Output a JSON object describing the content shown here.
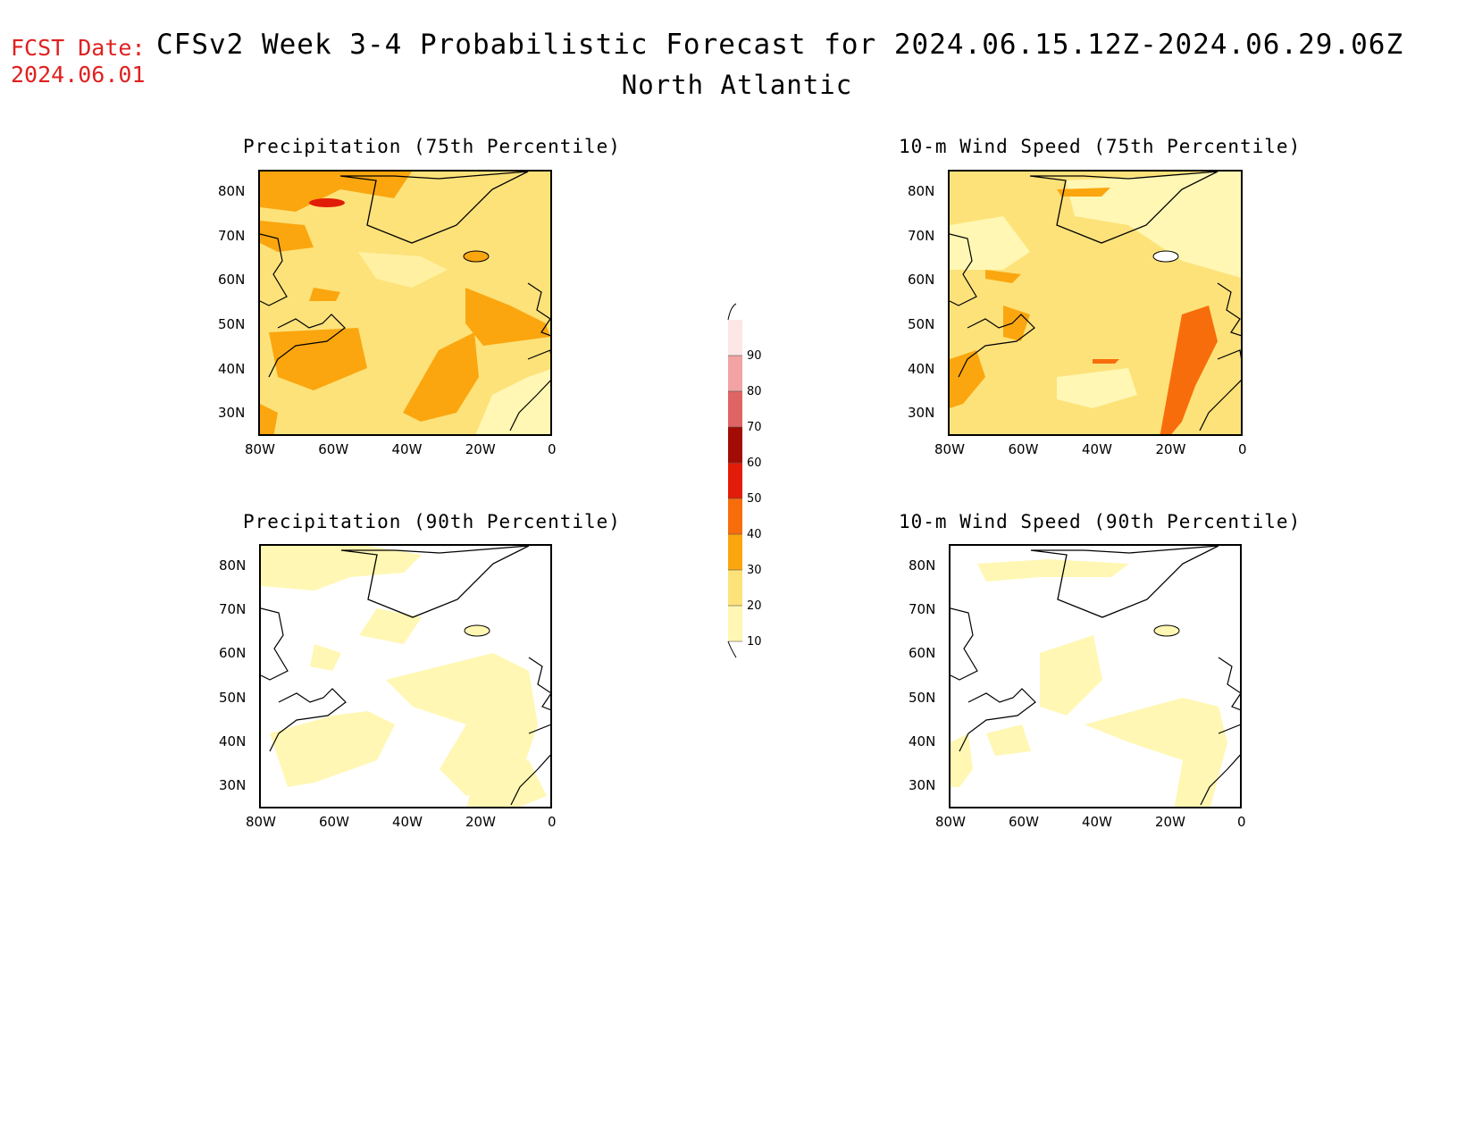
{
  "header": {
    "fcst_label": "FCST Date:",
    "fcst_date": "2024.06.01",
    "title": "CFSv2 Week 3-4 Probabilistic Forecast for 2024.06.15.12Z-2024.06.29.06Z",
    "subtitle": "North Atlantic"
  },
  "panels": [
    {
      "id": "precip75",
      "title": "Precipitation (75th Percentile)"
    },
    {
      "id": "wind75",
      "title": "10-m Wind Speed (75th Percentile)"
    },
    {
      "id": "precip90",
      "title": "Precipitation (90th Percentile)"
    },
    {
      "id": "wind90",
      "title": "10-m Wind Speed (90th Percentile)"
    }
  ],
  "axes": {
    "lat_labels": [
      "80N",
      "70N",
      "60N",
      "50N",
      "40N",
      "30N"
    ],
    "lon_labels": [
      "80W",
      "60W",
      "40W",
      "20W",
      "0"
    ]
  },
  "colorbar": {
    "levels": [
      "10",
      "20",
      "30",
      "40",
      "50",
      "60",
      "70",
      "80",
      "90"
    ],
    "colors": [
      "#fff7b3",
      "#fde27a",
      "#fba60f",
      "#f86d0b",
      "#e11c08",
      "#a20c04",
      "#df6565",
      "#f2a3a3",
      "#fde6e6"
    ]
  }
}
